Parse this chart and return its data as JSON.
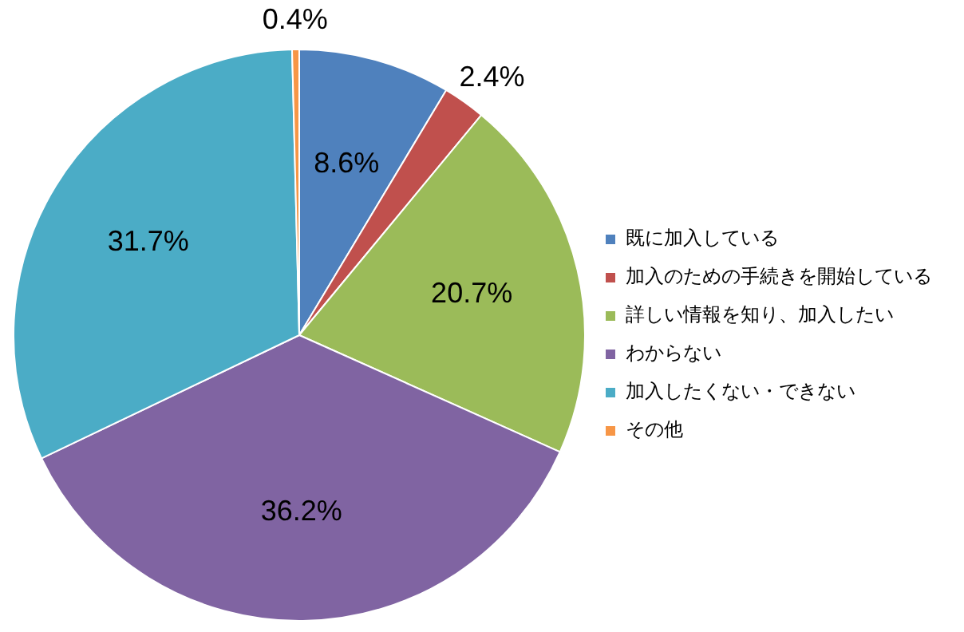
{
  "chart_data": {
    "type": "pie",
    "categories": [
      "既に加入している",
      "加入のための手続きを開始している",
      "詳しい情報を知り、加入したい",
      "わからない",
      "加入したくない・できない",
      "その他"
    ],
    "values": [
      8.6,
      2.4,
      20.7,
      36.2,
      31.7,
      0.4
    ],
    "colors": [
      "#4f81bd",
      "#c0504d",
      "#9bbb59",
      "#8064a2",
      "#4bacc6",
      "#f79646"
    ],
    "value_labels": [
      "8.6%",
      "2.4%",
      "20.7%",
      "36.2%",
      "31.7%",
      "0.4%"
    ],
    "legend": "right"
  }
}
